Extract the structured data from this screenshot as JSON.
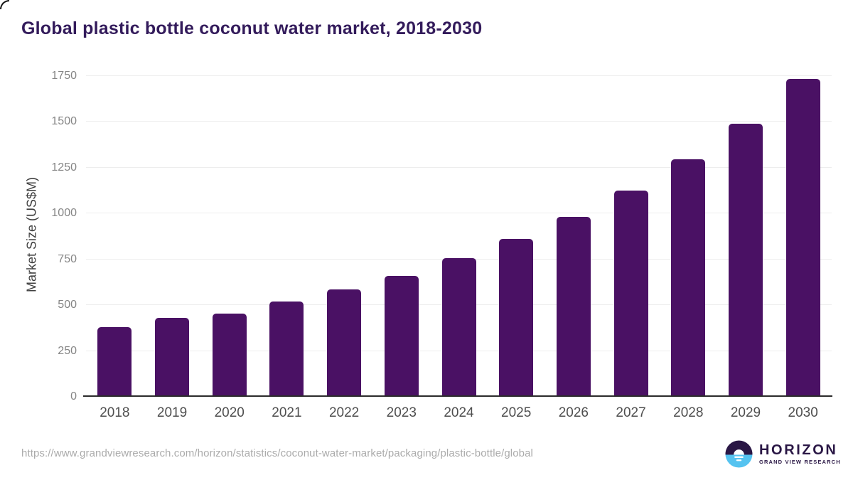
{
  "header": {
    "title": "Global plastic bottle coconut water market, 2018-2030"
  },
  "chart_data": {
    "type": "bar",
    "title": "Global plastic bottle coconut water market, 2018-2030",
    "categories": [
      "2018",
      "2019",
      "2020",
      "2021",
      "2022",
      "2023",
      "2024",
      "2025",
      "2026",
      "2027",
      "2028",
      "2029",
      "2030"
    ],
    "values": [
      380,
      430,
      455,
      520,
      585,
      660,
      755,
      860,
      980,
      1125,
      1295,
      1490,
      1735
    ],
    "xlabel": "",
    "ylabel": "Market Size (US$M)",
    "ylim": [
      0,
      1750
    ],
    "y_ticks": [
      0,
      250,
      500,
      750,
      1000,
      1250,
      1500,
      1750
    ],
    "grid": true,
    "legend": false,
    "bar_corner_radius_px": 5
  },
  "colors": {
    "bar": "#4a1164",
    "title": "#331b5b",
    "axis_line": "#2b2b2b",
    "gridline": "#ededed",
    "y_tick_label": "#858585",
    "x_tick_label": "#4f4f4f",
    "url_text": "#ababab",
    "logo_purple": "#2a1745",
    "logo_blue": "#55c3f0"
  },
  "footer": {
    "source_url": "https://www.grandviewresearch.com/horizon/statistics/coconut-water-market/packaging/plastic-bottle/global",
    "logo": {
      "brand": "HORIZON",
      "sub_brand": "GRAND VIEW RESEARCH"
    }
  }
}
